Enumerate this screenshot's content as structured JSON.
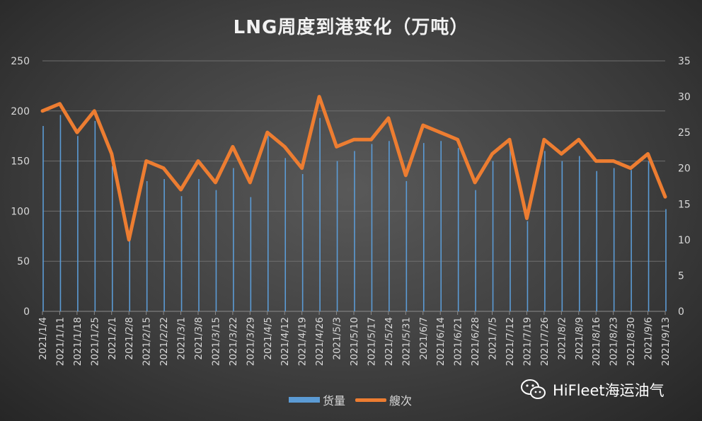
{
  "chart_data": {
    "type": "bar+line",
    "title": "LNG周度到港变化（万吨）",
    "categories": [
      "2021/1/4",
      "2021/1/11",
      "2021/1/18",
      "2021/1/25",
      "2021/2/1",
      "2021/2/8",
      "2021/2/15",
      "2021/2/22",
      "2021/3/1",
      "2021/3/8",
      "2021/3/15",
      "2021/3/22",
      "2021/3/29",
      "2021/4/5",
      "2021/4/12",
      "2021/4/19",
      "2021/4/26",
      "2021/5/3",
      "2021/5/10",
      "2021/5/17",
      "2021/5/24",
      "2021/5/31",
      "2021/6/7",
      "2021/6/14",
      "2021/6/21",
      "2021/6/28",
      "2021/7/5",
      "2021/7/12",
      "2021/7/19",
      "2021/7/26",
      "2021/8/2",
      "2021/8/9",
      "2021/8/16",
      "2021/8/23",
      "2021/8/30",
      "2021/9/6",
      "2021/9/13"
    ],
    "series": [
      {
        "name": "货量",
        "type": "bar",
        "axis": "left",
        "color": "#5b9bd5",
        "values": [
          185,
          196,
          175,
          190,
          145,
          72,
          130,
          132,
          115,
          132,
          121,
          143,
          114,
          175,
          153,
          137,
          193,
          150,
          160,
          167,
          170,
          130,
          168,
          170,
          163,
          121,
          150,
          167,
          90,
          160,
          150,
          155,
          140,
          143,
          141,
          150,
          102
        ]
      },
      {
        "name": "艘次",
        "type": "line",
        "axis": "right",
        "color": "#ed7d31",
        "values": [
          28,
          29,
          25,
          28,
          22,
          10,
          21,
          20,
          17,
          21,
          18,
          23,
          18,
          25,
          23,
          20,
          30,
          23,
          24,
          24,
          27,
          19,
          26,
          25,
          24,
          18,
          22,
          24,
          13,
          24,
          22,
          24,
          21,
          21,
          20,
          22,
          16
        ]
      }
    ],
    "ylim_left": [
      0,
      250
    ],
    "yticks_left": [
      "0",
      "50",
      "100",
      "150",
      "200",
      "250"
    ],
    "ylim_right": [
      0,
      35
    ],
    "yticks_right": [
      "0",
      "5",
      "10",
      "15",
      "20",
      "25",
      "30",
      "35"
    ],
    "grid": true,
    "legend": "bottom"
  },
  "watermark": {
    "text": "HiFleet海运油气",
    "icon": "wechat-icon"
  }
}
